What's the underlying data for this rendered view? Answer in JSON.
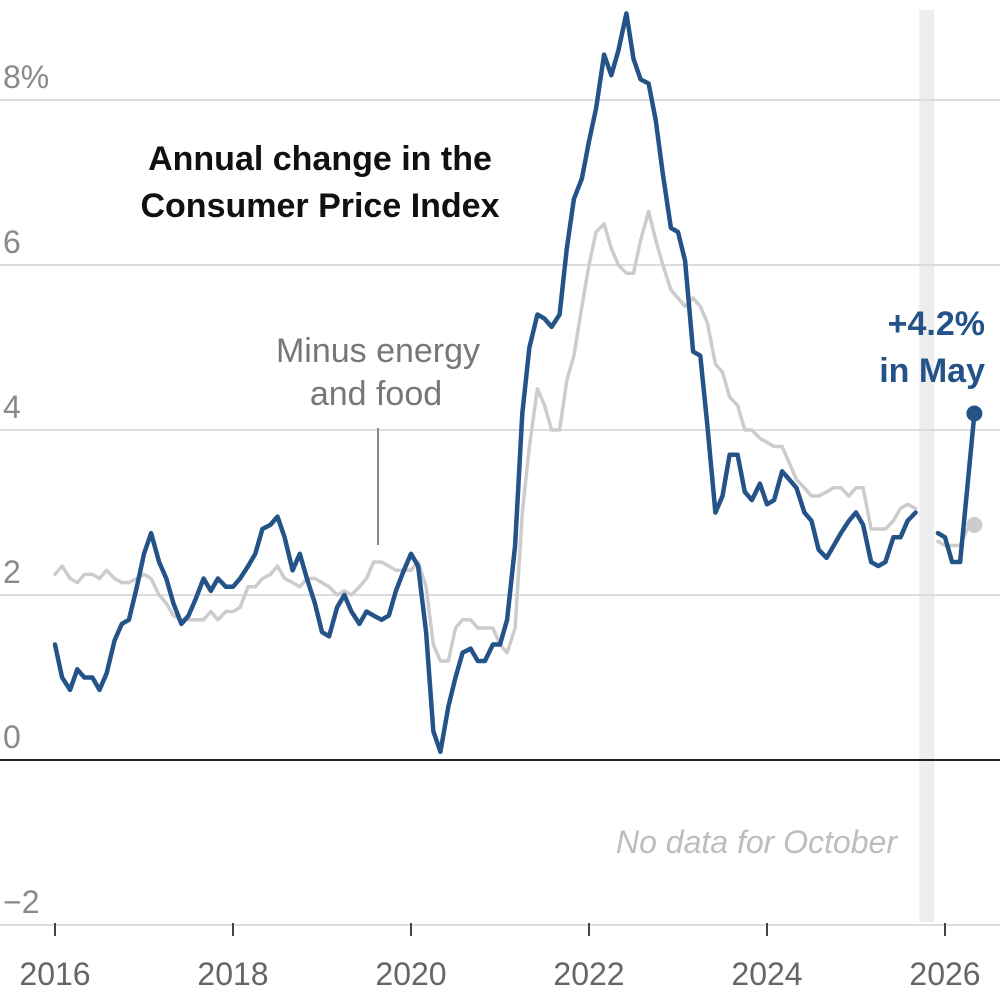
{
  "chart_data": {
    "type": "line",
    "title_lines": [
      "Annual change in the",
      "Consumer Price Index"
    ],
    "ylim": [
      -2,
      9
    ],
    "y_ticks": [
      {
        "value": 8,
        "label": "8%"
      },
      {
        "value": 6,
        "label": "6"
      },
      {
        "value": 4,
        "label": "4"
      },
      {
        "value": 2,
        "label": "2"
      },
      {
        "value": 0,
        "label": "0"
      },
      {
        "value": -2,
        "label": "−2"
      }
    ],
    "x_ticks": [
      {
        "value": 2016,
        "label": "2016"
      },
      {
        "value": 2018,
        "label": "2018"
      },
      {
        "value": 2020,
        "label": "2020"
      },
      {
        "value": 2022,
        "label": "2022"
      },
      {
        "value": 2024,
        "label": "2024"
      },
      {
        "value": 2026,
        "label": "2026"
      }
    ],
    "grid": true,
    "colors": {
      "headline": "#235387",
      "core": "#cccccc",
      "gap_band": "#eeeeee"
    },
    "gap_band": {
      "x_start": 2025.71,
      "x_end": 2025.88
    },
    "series": [
      {
        "name": "headline",
        "points": [
          [
            2016.0,
            1.4
          ],
          [
            2016.08,
            1.0
          ],
          [
            2016.17,
            0.85
          ],
          [
            2016.25,
            1.1
          ],
          [
            2016.33,
            1.0
          ],
          [
            2016.42,
            1.0
          ],
          [
            2016.5,
            0.85
          ],
          [
            2016.58,
            1.05
          ],
          [
            2016.67,
            1.45
          ],
          [
            2016.75,
            1.65
          ],
          [
            2016.83,
            1.7
          ],
          [
            2016.92,
            2.1
          ],
          [
            2017.0,
            2.5
          ],
          [
            2017.08,
            2.75
          ],
          [
            2017.17,
            2.4
          ],
          [
            2017.25,
            2.2
          ],
          [
            2017.33,
            1.9
          ],
          [
            2017.42,
            1.65
          ],
          [
            2017.5,
            1.75
          ],
          [
            2017.58,
            1.95
          ],
          [
            2017.67,
            2.2
          ],
          [
            2017.75,
            2.05
          ],
          [
            2017.83,
            2.2
          ],
          [
            2017.92,
            2.1
          ],
          [
            2018.0,
            2.1
          ],
          [
            2018.08,
            2.2
          ],
          [
            2018.17,
            2.35
          ],
          [
            2018.25,
            2.5
          ],
          [
            2018.33,
            2.8
          ],
          [
            2018.42,
            2.85
          ],
          [
            2018.5,
            2.95
          ],
          [
            2018.58,
            2.7
          ],
          [
            2018.67,
            2.3
          ],
          [
            2018.75,
            2.5
          ],
          [
            2018.83,
            2.2
          ],
          [
            2018.92,
            1.9
          ],
          [
            2019.0,
            1.55
          ],
          [
            2019.08,
            1.5
          ],
          [
            2019.17,
            1.85
          ],
          [
            2019.25,
            2.0
          ],
          [
            2019.33,
            1.8
          ],
          [
            2019.42,
            1.65
          ],
          [
            2019.5,
            1.8
          ],
          [
            2019.58,
            1.75
          ],
          [
            2019.67,
            1.7
          ],
          [
            2019.75,
            1.75
          ],
          [
            2019.83,
            2.05
          ],
          [
            2019.92,
            2.3
          ],
          [
            2020.0,
            2.5
          ],
          [
            2020.08,
            2.35
          ],
          [
            2020.17,
            1.55
          ],
          [
            2020.25,
            0.35
          ],
          [
            2020.33,
            0.1
          ],
          [
            2020.42,
            0.65
          ],
          [
            2020.5,
            1.0
          ],
          [
            2020.58,
            1.3
          ],
          [
            2020.67,
            1.35
          ],
          [
            2020.75,
            1.2
          ],
          [
            2020.83,
            1.2
          ],
          [
            2020.92,
            1.4
          ],
          [
            2021.0,
            1.4
          ],
          [
            2021.08,
            1.7
          ],
          [
            2021.17,
            2.6
          ],
          [
            2021.25,
            4.2
          ],
          [
            2021.33,
            5.0
          ],
          [
            2021.42,
            5.4
          ],
          [
            2021.5,
            5.35
          ],
          [
            2021.58,
            5.25
          ],
          [
            2021.67,
            5.4
          ],
          [
            2021.75,
            6.2
          ],
          [
            2021.83,
            6.8
          ],
          [
            2021.92,
            7.05
          ],
          [
            2022.0,
            7.5
          ],
          [
            2022.08,
            7.9
          ],
          [
            2022.17,
            8.55
          ],
          [
            2022.25,
            8.3
          ],
          [
            2022.33,
            8.6
          ],
          [
            2022.42,
            9.05
          ],
          [
            2022.5,
            8.5
          ],
          [
            2022.58,
            8.25
          ],
          [
            2022.67,
            8.2
          ],
          [
            2022.75,
            7.75
          ],
          [
            2022.83,
            7.1
          ],
          [
            2022.92,
            6.45
          ],
          [
            2023.0,
            6.4
          ],
          [
            2023.08,
            6.05
          ],
          [
            2023.17,
            4.95
          ],
          [
            2023.25,
            4.9
          ],
          [
            2023.33,
            4.05
          ],
          [
            2023.42,
            3.0
          ],
          [
            2023.5,
            3.2
          ],
          [
            2023.58,
            3.7
          ],
          [
            2023.67,
            3.7
          ],
          [
            2023.75,
            3.25
          ],
          [
            2023.83,
            3.15
          ],
          [
            2023.92,
            3.35
          ],
          [
            2024.0,
            3.1
          ],
          [
            2024.08,
            3.15
          ],
          [
            2024.17,
            3.5
          ],
          [
            2024.25,
            3.4
          ],
          [
            2024.33,
            3.3
          ],
          [
            2024.42,
            3.0
          ],
          [
            2024.5,
            2.9
          ],
          [
            2024.58,
            2.55
          ],
          [
            2024.67,
            2.45
          ],
          [
            2024.75,
            2.6
          ],
          [
            2024.83,
            2.75
          ],
          [
            2024.92,
            2.9
          ],
          [
            2025.0,
            3.0
          ],
          [
            2025.08,
            2.85
          ],
          [
            2025.17,
            2.4
          ],
          [
            2025.25,
            2.35
          ],
          [
            2025.33,
            2.4
          ],
          [
            2025.42,
            2.7
          ],
          [
            2025.5,
            2.7
          ],
          [
            2025.58,
            2.9
          ],
          [
            2025.67,
            3.0
          ],
          null,
          [
            2025.92,
            2.75
          ],
          [
            2026.0,
            2.7
          ],
          [
            2026.08,
            2.4
          ],
          [
            2026.17,
            2.4
          ],
          [
            2026.25,
            3.3
          ],
          [
            2026.33,
            4.2
          ]
        ]
      },
      {
        "name": "core",
        "points": [
          [
            2016.0,
            2.25
          ],
          [
            2016.08,
            2.35
          ],
          [
            2016.17,
            2.2
          ],
          [
            2016.25,
            2.15
          ],
          [
            2016.33,
            2.25
          ],
          [
            2016.42,
            2.25
          ],
          [
            2016.5,
            2.2
          ],
          [
            2016.58,
            2.3
          ],
          [
            2016.67,
            2.2
          ],
          [
            2016.75,
            2.15
          ],
          [
            2016.83,
            2.15
          ],
          [
            2016.92,
            2.2
          ],
          [
            2017.0,
            2.25
          ],
          [
            2017.08,
            2.2
          ],
          [
            2017.17,
            2.0
          ],
          [
            2017.25,
            1.9
          ],
          [
            2017.33,
            1.75
          ],
          [
            2017.42,
            1.7
          ],
          [
            2017.5,
            1.7
          ],
          [
            2017.58,
            1.7
          ],
          [
            2017.67,
            1.7
          ],
          [
            2017.75,
            1.8
          ],
          [
            2017.83,
            1.7
          ],
          [
            2017.92,
            1.8
          ],
          [
            2018.0,
            1.8
          ],
          [
            2018.08,
            1.85
          ],
          [
            2018.17,
            2.1
          ],
          [
            2018.25,
            2.1
          ],
          [
            2018.33,
            2.2
          ],
          [
            2018.42,
            2.25
          ],
          [
            2018.5,
            2.35
          ],
          [
            2018.58,
            2.2
          ],
          [
            2018.67,
            2.15
          ],
          [
            2018.75,
            2.1
          ],
          [
            2018.83,
            2.2
          ],
          [
            2018.92,
            2.2
          ],
          [
            2019.0,
            2.15
          ],
          [
            2019.08,
            2.1
          ],
          [
            2019.17,
            2.0
          ],
          [
            2019.25,
            2.05
          ],
          [
            2019.33,
            2.0
          ],
          [
            2019.42,
            2.1
          ],
          [
            2019.5,
            2.2
          ],
          [
            2019.58,
            2.4
          ],
          [
            2019.67,
            2.4
          ],
          [
            2019.75,
            2.35
          ],
          [
            2019.83,
            2.3
          ],
          [
            2019.92,
            2.3
          ],
          [
            2020.0,
            2.3
          ],
          [
            2020.08,
            2.4
          ],
          [
            2020.17,
            2.1
          ],
          [
            2020.25,
            1.4
          ],
          [
            2020.33,
            1.2
          ],
          [
            2020.42,
            1.2
          ],
          [
            2020.5,
            1.6
          ],
          [
            2020.58,
            1.7
          ],
          [
            2020.67,
            1.7
          ],
          [
            2020.75,
            1.6
          ],
          [
            2020.83,
            1.6
          ],
          [
            2020.92,
            1.6
          ],
          [
            2021.0,
            1.4
          ],
          [
            2021.08,
            1.3
          ],
          [
            2021.17,
            1.6
          ],
          [
            2021.25,
            3.0
          ],
          [
            2021.33,
            3.8
          ],
          [
            2021.42,
            4.5
          ],
          [
            2021.5,
            4.3
          ],
          [
            2021.58,
            4.0
          ],
          [
            2021.67,
            4.0
          ],
          [
            2021.75,
            4.6
          ],
          [
            2021.83,
            4.9
          ],
          [
            2021.92,
            5.5
          ],
          [
            2022.0,
            6.0
          ],
          [
            2022.08,
            6.4
          ],
          [
            2022.17,
            6.5
          ],
          [
            2022.25,
            6.2
          ],
          [
            2022.33,
            6.0
          ],
          [
            2022.42,
            5.9
          ],
          [
            2022.5,
            5.9
          ],
          [
            2022.58,
            6.3
          ],
          [
            2022.67,
            6.65
          ],
          [
            2022.75,
            6.3
          ],
          [
            2022.83,
            6.0
          ],
          [
            2022.92,
            5.7
          ],
          [
            2023.0,
            5.6
          ],
          [
            2023.08,
            5.5
          ],
          [
            2023.17,
            5.6
          ],
          [
            2023.25,
            5.5
          ],
          [
            2023.33,
            5.3
          ],
          [
            2023.42,
            4.8
          ],
          [
            2023.5,
            4.7
          ],
          [
            2023.58,
            4.4
          ],
          [
            2023.67,
            4.3
          ],
          [
            2023.75,
            4.0
          ],
          [
            2023.83,
            4.0
          ],
          [
            2023.92,
            3.9
          ],
          [
            2024.0,
            3.85
          ],
          [
            2024.08,
            3.8
          ],
          [
            2024.17,
            3.8
          ],
          [
            2024.25,
            3.6
          ],
          [
            2024.33,
            3.4
          ],
          [
            2024.42,
            3.3
          ],
          [
            2024.5,
            3.2
          ],
          [
            2024.58,
            3.2
          ],
          [
            2024.67,
            3.25
          ],
          [
            2024.75,
            3.3
          ],
          [
            2024.83,
            3.3
          ],
          [
            2024.92,
            3.2
          ],
          [
            2025.0,
            3.3
          ],
          [
            2025.08,
            3.3
          ],
          [
            2025.17,
            2.8
          ],
          [
            2025.25,
            2.8
          ],
          [
            2025.33,
            2.8
          ],
          [
            2025.42,
            2.9
          ],
          [
            2025.5,
            3.05
          ],
          [
            2025.58,
            3.1
          ],
          [
            2025.67,
            3.05
          ],
          null,
          [
            2025.92,
            2.65
          ],
          [
            2026.0,
            2.6
          ],
          [
            2026.08,
            2.6
          ],
          [
            2026.17,
            2.6
          ],
          [
            2026.25,
            2.8
          ],
          [
            2026.33,
            2.85
          ]
        ]
      }
    ],
    "annotations": {
      "core_label_lines": [
        "Minus energy",
        "and food"
      ],
      "callout_lines": [
        "+4.2%",
        "in May"
      ],
      "no_data_note": "No data for October"
    }
  }
}
